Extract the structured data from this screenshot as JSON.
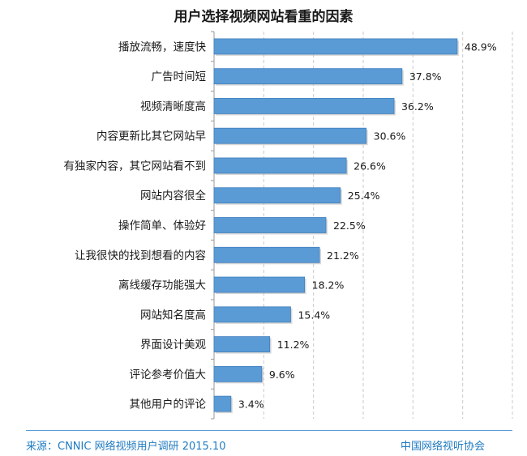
{
  "chart_data": {
    "type": "bar",
    "orientation": "horizontal",
    "title": "用户选择视频网站看重的因素",
    "categories": [
      "播放流畅，速度快",
      "广告时间短",
      "视频清晰度高",
      "内容更新比其它网站早",
      "有独家内容，其它网站看不到",
      "网站内容很全",
      "操作简单、体验好",
      "让我很快的找到想看的内容",
      "离线缓存功能强大",
      "网站知名度高",
      "界面设计美观",
      "评论参考价值大",
      "其他用户的评论"
    ],
    "values": [
      48.9,
      37.8,
      36.2,
      30.6,
      26.6,
      25.4,
      22.5,
      21.2,
      18.2,
      15.4,
      11.2,
      9.6,
      3.4
    ],
    "value_labels": [
      "48.9%",
      "37.8%",
      "36.2%",
      "30.6%",
      "26.6%",
      "25.4%",
      "22.5%",
      "21.2%",
      "18.2%",
      "15.4%",
      "11.2%",
      "9.6%",
      "3.4%"
    ],
    "unit": "%",
    "xlim": [
      0,
      60
    ],
    "grid": "vertical dashed",
    "legend": "none",
    "bar_color": "#5b9bd5",
    "bar_edge_color": "#3f7fbf"
  },
  "footer": {
    "source": "来源：CNNIC 网络视频用户调研   2015.10",
    "org": "中国网络视听协会",
    "color": "#1f7bc1"
  }
}
